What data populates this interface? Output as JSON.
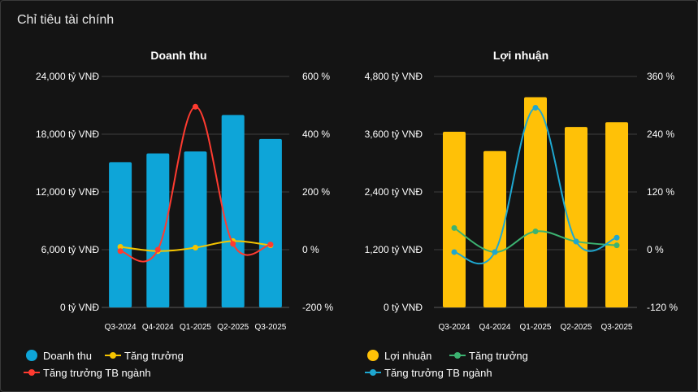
{
  "page": {
    "title": "Chỉ tiêu tài chính"
  },
  "colors": {
    "background": "#141414",
    "grid": "#4a4a4a",
    "text": "#ffffff",
    "revenue_bar": "#0ea5d8",
    "revenue_growth": "#f5c400",
    "revenue_industry": "#ff3b30",
    "profit_bar": "#ffc107",
    "profit_growth": "#3cb371",
    "profit_industry": "#1ea7d0"
  },
  "chart_data": [
    {
      "type": "bar",
      "title": "Doanh thu",
      "categories": [
        "Q3-2024",
        "Q4-2024",
        "Q1-2025",
        "Q2-2025",
        "Q3-2025"
      ],
      "unit_left": "tỷ VNĐ",
      "unit_right": "%",
      "ylim_left": [
        0,
        24000
      ],
      "yticks_left": [
        "0 tỷ VNĐ",
        "6,000 tỷ VNĐ",
        "12,000 tỷ VNĐ",
        "18,000 tỷ VNĐ",
        "24,000 tỷ VNĐ"
      ],
      "ylim_right": [
        -200,
        600
      ],
      "yticks_right": [
        "-200 %",
        "0 %",
        "200 %",
        "400 %",
        "600 %"
      ],
      "series": [
        {
          "name": "Doanh thu",
          "kind": "bar",
          "axis": "left",
          "color": "#0ea5d8",
          "values": [
            15100,
            16000,
            16200,
            20000,
            17500
          ]
        },
        {
          "name": "Tăng trưởng",
          "kind": "line",
          "axis": "right",
          "color": "#f5c400",
          "values": [
            10,
            -5,
            7,
            30,
            15
          ]
        },
        {
          "name": "Tăng trưởng TB ngành",
          "kind": "line",
          "axis": "right",
          "color": "#ff3b30",
          "values": [
            -5,
            0,
            495,
            20,
            18
          ]
        }
      ],
      "legend": [
        "Doanh thu",
        "Tăng trưởng",
        "Tăng trưởng TB ngành"
      ]
    },
    {
      "type": "bar",
      "title": "Lợi nhuận",
      "categories": [
        "Q3-2024",
        "Q4-2024",
        "Q1-2025",
        "Q2-2025",
        "Q3-2025"
      ],
      "unit_left": "tỷ VNĐ",
      "unit_right": "%",
      "ylim_left": [
        0,
        4800
      ],
      "yticks_left": [
        "0 tỷ VNĐ",
        "1,200 tỷ VNĐ",
        "2,400 tỷ VNĐ",
        "3,600 tỷ VNĐ",
        "4,800 tỷ VNĐ"
      ],
      "ylim_right": [
        -120,
        360
      ],
      "yticks_right": [
        "-120 %",
        "0 %",
        "120 %",
        "240 %",
        "360 %"
      ],
      "series": [
        {
          "name": "Lợi nhuận",
          "kind": "bar",
          "axis": "left",
          "color": "#ffc107",
          "values": [
            3650,
            3250,
            4370,
            3750,
            3850
          ]
        },
        {
          "name": "Tăng trưởng",
          "kind": "line",
          "axis": "right",
          "color": "#3cb371",
          "values": [
            45,
            -5,
            38,
            17,
            9
          ]
        },
        {
          "name": "Tăng trưởng TB ngành",
          "kind": "line",
          "axis": "right",
          "color": "#1ea7d0",
          "values": [
            -5,
            -5,
            295,
            17,
            25
          ]
        }
      ],
      "legend": [
        "Lợi nhuận",
        "Tăng trưởng",
        "Tăng trưởng TB ngành"
      ]
    }
  ]
}
